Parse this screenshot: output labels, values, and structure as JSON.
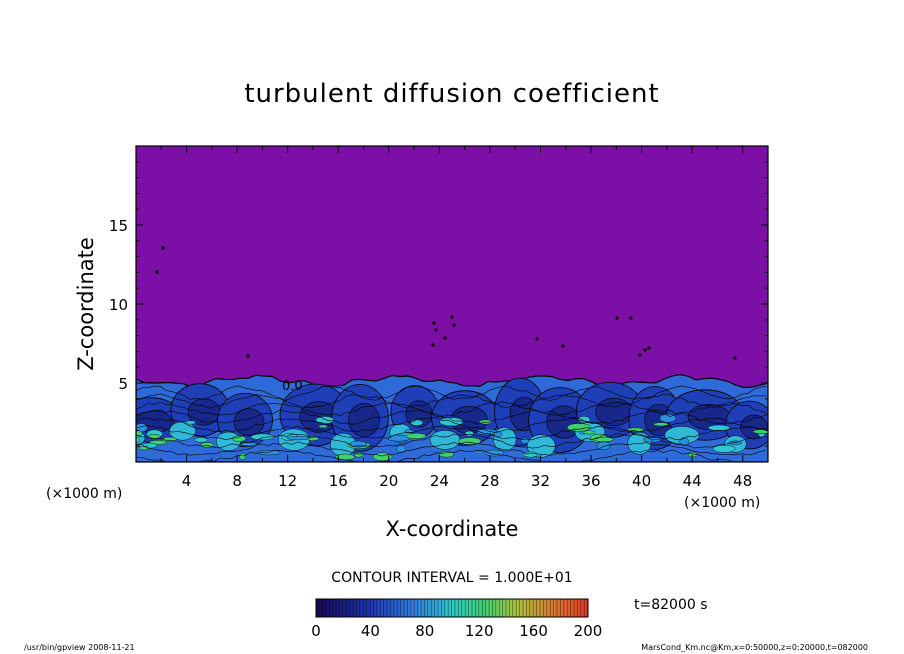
{
  "chart_data": {
    "type": "heatmap",
    "title": "turbulent diffusion coefficient",
    "xlabel": "X-coordinate",
    "ylabel": "Z-coordinate",
    "x_unit": "(×1000 m)",
    "y_unit": "(×1000 m)",
    "xlim": [
      0,
      50
    ],
    "ylim": [
      0,
      20
    ],
    "x_ticks": [
      "4",
      "8",
      "12",
      "16",
      "20",
      "24",
      "28",
      "32",
      "36",
      "40",
      "44",
      "48"
    ],
    "y_ticks": [
      "5",
      "10",
      "15"
    ],
    "contour_interval": "CONTOUR INTERVAL = 1.000E+01",
    "time_label": "t=82000 s",
    "colorbar": {
      "min": 0,
      "max": 200,
      "ticks": [
        "0",
        "40",
        "80",
        "120",
        "160",
        "200"
      ],
      "low_color": "#1a0a5a",
      "mid_color": "#2f6bd8",
      "high_color": "#e8462a"
    },
    "background_color": "#7b0fa6",
    "boundary_layer_top_km": 5,
    "inline_label": "0.0",
    "footer_left": "/usr/bin/gpview  2008-11-21",
    "footer_right": "MarsCond_Km.nc@Km,x=0:50000,z=0:20000,t=082000"
  }
}
